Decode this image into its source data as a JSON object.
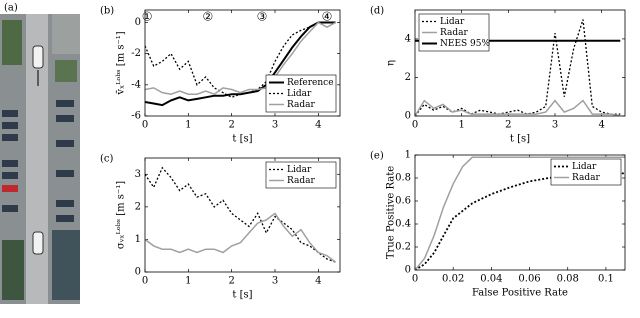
{
  "image": {
    "label": "(a)"
  },
  "chart_data": [
    {
      "type": "line",
      "panel_label": "(b)",
      "xlabel": "t [s]",
      "ylabel": "v̄ₓᴸᵒᵇˢ [m s⁻¹]",
      "xlim": [
        0,
        4.5
      ],
      "xticks": [
        0,
        1,
        2,
        3,
        4
      ],
      "ylim": [
        -6,
        0.8
      ],
      "yticks": [
        -6,
        -4,
        -2,
        0
      ],
      "legend": "lower right",
      "annotations": [
        {
          "text": "①",
          "x": 0.05
        },
        {
          "text": "②",
          "x": 1.45
        },
        {
          "text": "③",
          "x": 2.7
        },
        {
          "text": "④",
          "x": 4.2
        }
      ],
      "x": [
        0,
        0.2,
        0.4,
        0.6,
        0.8,
        1,
        1.2,
        1.4,
        1.6,
        1.8,
        2,
        2.2,
        2.4,
        2.6,
        2.8,
        3,
        3.2,
        3.4,
        3.6,
        3.8,
        4,
        4.2,
        4.4
      ],
      "series": [
        {
          "name": "Reference",
          "color": "#000000",
          "style": "solid",
          "width": 2,
          "values": [
            -5.1,
            -5.2,
            -5.3,
            -5.0,
            -4.8,
            -5.0,
            -4.9,
            -4.8,
            -4.7,
            -4.7,
            -4.6,
            -4.6,
            -4.5,
            -4.4,
            -4.0,
            -3.2,
            -2.4,
            -1.6,
            -0.9,
            -0.3,
            0,
            0,
            0
          ]
        },
        {
          "name": "Lidar",
          "color": "#000000",
          "style": "dotted",
          "width": 1.3,
          "values": [
            -1.5,
            -2.8,
            -2.5,
            -2.0,
            -3.0,
            -2.5,
            -4.0,
            -3.5,
            -4.2,
            -4.5,
            -4.8,
            -4.6,
            -4.5,
            -4.3,
            -3.8,
            -2.5,
            -1.5,
            -0.8,
            -0.5,
            -0.3,
            0,
            0,
            0
          ]
        },
        {
          "name": "Radar",
          "color": "#a0a0a0",
          "style": "solid",
          "width": 1.5,
          "values": [
            -4.3,
            -4.2,
            -4.5,
            -4.6,
            -4.4,
            -4.6,
            -4.6,
            -4.4,
            -4.6,
            -4.2,
            -4.3,
            -4.5,
            -4.3,
            -4.3,
            -4.2,
            -3.5,
            -2.7,
            -2.0,
            -1.2,
            -0.6,
            0,
            -0.3,
            0
          ]
        }
      ]
    },
    {
      "type": "line",
      "panel_label": "(c)",
      "xlabel": "t [s]",
      "ylabel": "σᵥₓᴸᵒᵇˢ [m s⁻¹]",
      "xlim": [
        0,
        4.5
      ],
      "xticks": [
        0,
        1,
        2,
        3,
        4
      ],
      "ylim": [
        0,
        3.5
      ],
      "yticks": [
        0,
        1,
        2,
        3
      ],
      "legend": "upper right",
      "x": [
        0,
        0.2,
        0.4,
        0.6,
        0.8,
        1,
        1.2,
        1.4,
        1.6,
        1.8,
        2,
        2.2,
        2.4,
        2.6,
        2.8,
        3,
        3.2,
        3.4,
        3.6,
        3.8,
        4,
        4.2,
        4.4
      ],
      "series": [
        {
          "name": "Lidar",
          "color": "#000000",
          "style": "dotted",
          "width": 1.3,
          "values": [
            3.0,
            2.6,
            3.2,
            2.9,
            2.5,
            2.7,
            2.3,
            2.4,
            2.0,
            2.2,
            1.8,
            1.6,
            1.4,
            1.8,
            1.2,
            1.7,
            1.5,
            1.3,
            0.9,
            0.8,
            0.6,
            0.4,
            0.3
          ]
        },
        {
          "name": "Radar",
          "color": "#a0a0a0",
          "style": "solid",
          "width": 1.5,
          "values": [
            1.0,
            0.8,
            0.7,
            0.7,
            0.6,
            0.7,
            0.6,
            0.7,
            0.7,
            0.6,
            0.8,
            0.9,
            1.2,
            1.5,
            1.6,
            1.8,
            1.4,
            1.1,
            1.3,
            0.9,
            0.6,
            0.5,
            0.3
          ]
        }
      ]
    },
    {
      "type": "line",
      "panel_label": "(d)",
      "xlabel": "t [s]",
      "ylabel": "η",
      "xlim": [
        0,
        4.5
      ],
      "xticks": [
        0,
        1,
        2,
        3,
        4
      ],
      "ylim": [
        0,
        5.5
      ],
      "yticks": [
        0,
        2,
        4
      ],
      "legend": "upper left",
      "x": [
        0,
        0.2,
        0.4,
        0.6,
        0.8,
        1,
        1.2,
        1.4,
        1.6,
        1.8,
        2,
        2.2,
        2.4,
        2.6,
        2.8,
        3,
        3.2,
        3.4,
        3.6,
        3.8,
        4,
        4.2,
        4.4
      ],
      "series": [
        {
          "name": "Lidar",
          "color": "#000000",
          "style": "dotted",
          "width": 1.3,
          "values": [
            0,
            0.6,
            0.3,
            0.5,
            0.2,
            0.4,
            0.1,
            0.3,
            0.2,
            0.1,
            0.2,
            0.3,
            0.1,
            0.2,
            0.5,
            4.3,
            1.0,
            3.5,
            5.0,
            0.5,
            0.2,
            0.1,
            0.1
          ]
        },
        {
          "name": "Radar",
          "color": "#a0a0a0",
          "style": "solid",
          "width": 1.5,
          "values": [
            0,
            0.8,
            0.4,
            0.6,
            0.2,
            0.3,
            0.1,
            0.1,
            0.1,
            0.1,
            0.1,
            0.1,
            0.1,
            0.1,
            0.2,
            0.8,
            0.2,
            0.4,
            0.8,
            0.1,
            0.1,
            0.1,
            0
          ]
        },
        {
          "name": "NEES 95%",
          "color": "#000000",
          "style": "solid",
          "width": 2,
          "values": [
            3.9,
            3.9,
            3.9,
            3.9,
            3.9,
            3.9,
            3.9,
            3.9,
            3.9,
            3.9,
            3.9,
            3.9,
            3.9,
            3.9,
            3.9,
            3.9,
            3.9,
            3.9,
            3.9,
            3.9,
            3.9,
            3.9,
            3.9
          ]
        }
      ]
    },
    {
      "type": "line",
      "panel_label": "(e)",
      "xlabel": "False Positive Rate",
      "ylabel": "True Positive Rate",
      "xlim": [
        0,
        0.11
      ],
      "xticks": [
        0,
        0.02,
        0.04,
        0.06,
        0.08,
        0.1
      ],
      "ylim": [
        0,
        1
      ],
      "yticks": [
        0,
        0.2,
        0.4,
        0.6,
        0.8,
        1
      ],
      "legend": "upper right",
      "series": [
        {
          "name": "Lidar",
          "color": "#000000",
          "style": "dotted",
          "width": 1.8,
          "x": [
            0,
            0.005,
            0.01,
            0.015,
            0.02,
            0.03,
            0.04,
            0.05,
            0.06,
            0.07,
            0.08,
            0.09,
            0.1,
            0.11
          ],
          "values": [
            0,
            0.05,
            0.15,
            0.3,
            0.45,
            0.58,
            0.66,
            0.72,
            0.77,
            0.8,
            0.82,
            0.83,
            0.84,
            0.84
          ]
        },
        {
          "name": "Radar",
          "color": "#a0a0a0",
          "style": "solid",
          "width": 1.5,
          "x": [
            0,
            0.005,
            0.01,
            0.015,
            0.02,
            0.025,
            0.03,
            0.11
          ],
          "values": [
            0,
            0.1,
            0.3,
            0.55,
            0.75,
            0.9,
            0.98,
            0.98
          ]
        }
      ]
    }
  ]
}
